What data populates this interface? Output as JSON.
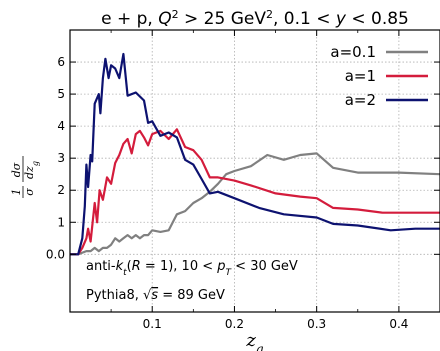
{
  "chart_data": {
    "type": "line",
    "title": "e + p, Q² > 25 GeV², 0.1 < y < 0.85",
    "xlabel": "z_g",
    "ylabel": "1/σ dσ/dz_g",
    "xlim": [
      0.0,
      0.45
    ],
    "ylim": [
      -1.8,
      7.0
    ],
    "grid": true,
    "legend_position": "top-right",
    "x_ticks": [
      {
        "v": 0.1,
        "label": "0.1"
      },
      {
        "v": 0.2,
        "label": "0.2"
      },
      {
        "v": 0.3,
        "label": "0.3"
      },
      {
        "v": 0.4,
        "label": "0.4"
      }
    ],
    "y_ticks": [
      {
        "v": 0,
        "label": "0.0"
      },
      {
        "v": 1,
        "label": "1"
      },
      {
        "v": 2,
        "label": "2"
      },
      {
        "v": 3,
        "label": "3"
      },
      {
        "v": 4,
        "label": "4"
      },
      {
        "v": 5,
        "label": "5"
      },
      {
        "v": 6,
        "label": "6"
      }
    ],
    "annotations": [
      "anti-k_t(R = 1), 10 < p_T < 30 GeV",
      "Pythia8, √s = 89 GeV"
    ],
    "series": [
      {
        "name": "a=0.1",
        "color": "#808080",
        "points": [
          [
            0.0,
            0.0
          ],
          [
            0.01,
            0.0
          ],
          [
            0.02,
            0.1
          ],
          [
            0.025,
            0.1
          ],
          [
            0.03,
            0.2
          ],
          [
            0.035,
            0.1
          ],
          [
            0.04,
            0.2
          ],
          [
            0.045,
            0.2
          ],
          [
            0.05,
            0.3
          ],
          [
            0.055,
            0.5
          ],
          [
            0.06,
            0.4
          ],
          [
            0.065,
            0.5
          ],
          [
            0.07,
            0.6
          ],
          [
            0.075,
            0.5
          ],
          [
            0.08,
            0.6
          ],
          [
            0.085,
            0.5
          ],
          [
            0.09,
            0.6
          ],
          [
            0.095,
            0.6
          ],
          [
            0.1,
            0.75
          ],
          [
            0.11,
            0.7
          ],
          [
            0.12,
            0.75
          ],
          [
            0.13,
            1.25
          ],
          [
            0.14,
            1.35
          ],
          [
            0.15,
            1.6
          ],
          [
            0.16,
            1.75
          ],
          [
            0.17,
            1.95
          ],
          [
            0.18,
            2.2
          ],
          [
            0.19,
            2.5
          ],
          [
            0.2,
            2.6
          ],
          [
            0.22,
            2.75
          ],
          [
            0.24,
            3.1
          ],
          [
            0.26,
            2.95
          ],
          [
            0.28,
            3.1
          ],
          [
            0.3,
            3.15
          ],
          [
            0.32,
            2.7
          ],
          [
            0.35,
            2.55
          ],
          [
            0.4,
            2.55
          ],
          [
            0.45,
            2.5
          ]
        ]
      },
      {
        "name": "a=1",
        "color": "#d41c3c",
        "points": [
          [
            0.0,
            0.0
          ],
          [
            0.01,
            0.0
          ],
          [
            0.015,
            0.2
          ],
          [
            0.02,
            0.5
          ],
          [
            0.022,
            0.8
          ],
          [
            0.025,
            0.4
          ],
          [
            0.03,
            1.6
          ],
          [
            0.033,
            1.0
          ],
          [
            0.036,
            2.0
          ],
          [
            0.04,
            1.7
          ],
          [
            0.045,
            2.4
          ],
          [
            0.05,
            2.2
          ],
          [
            0.055,
            2.85
          ],
          [
            0.06,
            3.1
          ],
          [
            0.065,
            3.45
          ],
          [
            0.07,
            3.6
          ],
          [
            0.075,
            3.15
          ],
          [
            0.08,
            3.75
          ],
          [
            0.085,
            3.85
          ],
          [
            0.09,
            3.65
          ],
          [
            0.095,
            3.4
          ],
          [
            0.1,
            3.75
          ],
          [
            0.11,
            3.85
          ],
          [
            0.12,
            3.6
          ],
          [
            0.13,
            3.9
          ],
          [
            0.14,
            3.35
          ],
          [
            0.15,
            3.25
          ],
          [
            0.16,
            2.95
          ],
          [
            0.17,
            2.4
          ],
          [
            0.18,
            2.4
          ],
          [
            0.2,
            2.3
          ],
          [
            0.22,
            2.15
          ],
          [
            0.25,
            1.9
          ],
          [
            0.28,
            1.8
          ],
          [
            0.3,
            1.75
          ],
          [
            0.32,
            1.45
          ],
          [
            0.35,
            1.4
          ],
          [
            0.38,
            1.3
          ],
          [
            0.42,
            1.3
          ],
          [
            0.45,
            1.3
          ]
        ]
      },
      {
        "name": "a=2",
        "color": "#0d1270",
        "points": [
          [
            0.0,
            0.0
          ],
          [
            0.01,
            0.0
          ],
          [
            0.015,
            0.5
          ],
          [
            0.018,
            1.5
          ],
          [
            0.02,
            2.8
          ],
          [
            0.022,
            2.1
          ],
          [
            0.025,
            3.1
          ],
          [
            0.027,
            2.9
          ],
          [
            0.03,
            4.7
          ],
          [
            0.035,
            5.0
          ],
          [
            0.037,
            4.4
          ],
          [
            0.04,
            5.5
          ],
          [
            0.043,
            6.1
          ],
          [
            0.047,
            5.5
          ],
          [
            0.05,
            5.9
          ],
          [
            0.055,
            5.8
          ],
          [
            0.06,
            5.5
          ],
          [
            0.065,
            6.25
          ],
          [
            0.07,
            4.95
          ],
          [
            0.08,
            5.05
          ],
          [
            0.09,
            4.8
          ],
          [
            0.095,
            4.1
          ],
          [
            0.1,
            4.15
          ],
          [
            0.11,
            3.7
          ],
          [
            0.12,
            3.8
          ],
          [
            0.13,
            3.65
          ],
          [
            0.14,
            2.95
          ],
          [
            0.15,
            2.8
          ],
          [
            0.16,
            2.35
          ],
          [
            0.17,
            1.9
          ],
          [
            0.18,
            1.95
          ],
          [
            0.2,
            1.75
          ],
          [
            0.23,
            1.45
          ],
          [
            0.26,
            1.25
          ],
          [
            0.3,
            1.15
          ],
          [
            0.32,
            0.95
          ],
          [
            0.35,
            0.9
          ],
          [
            0.39,
            0.75
          ],
          [
            0.42,
            0.8
          ],
          [
            0.45,
            0.8
          ]
        ]
      }
    ]
  }
}
